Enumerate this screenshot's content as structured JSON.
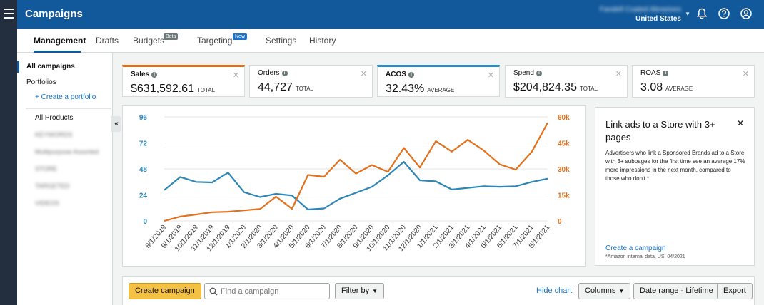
{
  "app": {
    "title": "Campaigns"
  },
  "account": {
    "name": "Fandell Coated Abrasives",
    "region": "United States"
  },
  "icons": {
    "menu": "hamburger-icon",
    "notifications": "bell-icon",
    "help": "help-icon",
    "profile": "user-icon"
  },
  "tabs": [
    {
      "label": "Management",
      "active": true
    },
    {
      "label": "Drafts"
    },
    {
      "label": "Budgets",
      "badge": "Beta"
    },
    {
      "label": "Targeting",
      "badge": "New"
    },
    {
      "label": "Settings"
    },
    {
      "label": "History"
    }
  ],
  "sidebar": {
    "all_campaigns": "All campaigns",
    "portfolios": "Portfolios",
    "create_portfolio": "+ Create a portfolio",
    "all_products": "All Products",
    "blurred_items": [
      "KEYWORDS",
      "Multipurpose Assorted",
      "STORE",
      "TARGETED",
      "VIDEOS"
    ]
  },
  "metrics": [
    {
      "label": "Sales",
      "value": "$631,592.61",
      "unit": "TOTAL",
      "accent": "#e2701c"
    },
    {
      "label": "Orders",
      "value": "44,727",
      "unit": "TOTAL"
    },
    {
      "label": "ACOS",
      "value": "32.43%",
      "unit": "AVERAGE",
      "accent": "#2d8ec4"
    },
    {
      "label": "Spend",
      "value": "$204,824.35",
      "unit": "TOTAL"
    },
    {
      "label": "ROAS",
      "value": "3.08",
      "unit": "AVERAGE"
    }
  ],
  "chart_data": {
    "type": "line",
    "categories": [
      "8/1/2019",
      "9/1/2019",
      "10/1/2019",
      "11/1/2019",
      "12/1/2019",
      "1/1/2020",
      "2/1/2020",
      "3/1/2020",
      "4/1/2020",
      "5/1/2020",
      "6/1/2020",
      "7/1/2020",
      "8/1/2020",
      "9/1/2020",
      "10/1/2020",
      "11/1/2020",
      "12/1/2020",
      "1/1/2021",
      "2/1/2021",
      "3/1/2021",
      "4/1/2021",
      "5/1/2021",
      "6/1/2021",
      "7/1/2021",
      "8/1/2021"
    ],
    "y_left": {
      "ticks": [
        "96",
        "72",
        "48",
        "24",
        "0"
      ],
      "ylim": [
        0,
        96
      ],
      "color": "#2d86b5"
    },
    "y_right": {
      "ticks": [
        "60k",
        "45k",
        "30k",
        "15k",
        "0"
      ],
      "ylim": [
        0,
        60000
      ],
      "color": "#e2701c"
    },
    "series": [
      {
        "axis": "left",
        "color": "#2d86b5",
        "values": [
          28.5,
          40.5,
          36,
          35.5,
          44.5,
          26.5,
          22,
          25,
          23.5,
          10.5,
          11.5,
          20.5,
          26,
          31.5,
          42,
          54.5,
          37.5,
          36.5,
          29,
          30.5,
          32,
          31.5,
          32,
          36,
          39
        ]
      },
      {
        "axis": "right",
        "color": "#e2701c",
        "values": [
          0,
          2500,
          3700,
          5000,
          5300,
          6100,
          6900,
          14000,
          7000,
          26500,
          25500,
          35300,
          27300,
          32200,
          28300,
          42100,
          30800,
          46000,
          40000,
          46800,
          40600,
          32600,
          29600,
          39800,
          56600
        ]
      }
    ],
    "grid": true
  },
  "promo": {
    "title": "Link ads to a Store with 3+ pages",
    "body": "Advertisers who link a Sponsored Brands ad to a Store with 3+ subpages for the first time see an average 17% more impressions in the next month, compared to those who don't.*",
    "cta": "Create a campaign",
    "footnote": "*Amazon internal data, US, 04/2021"
  },
  "toolbar": {
    "create": "Create campaign",
    "search_placeholder": "Find a campaign",
    "filter": "Filter by",
    "hide_chart": "Hide chart",
    "columns": "Columns",
    "date_range": "Date range - Lifetime",
    "export": "Export"
  }
}
